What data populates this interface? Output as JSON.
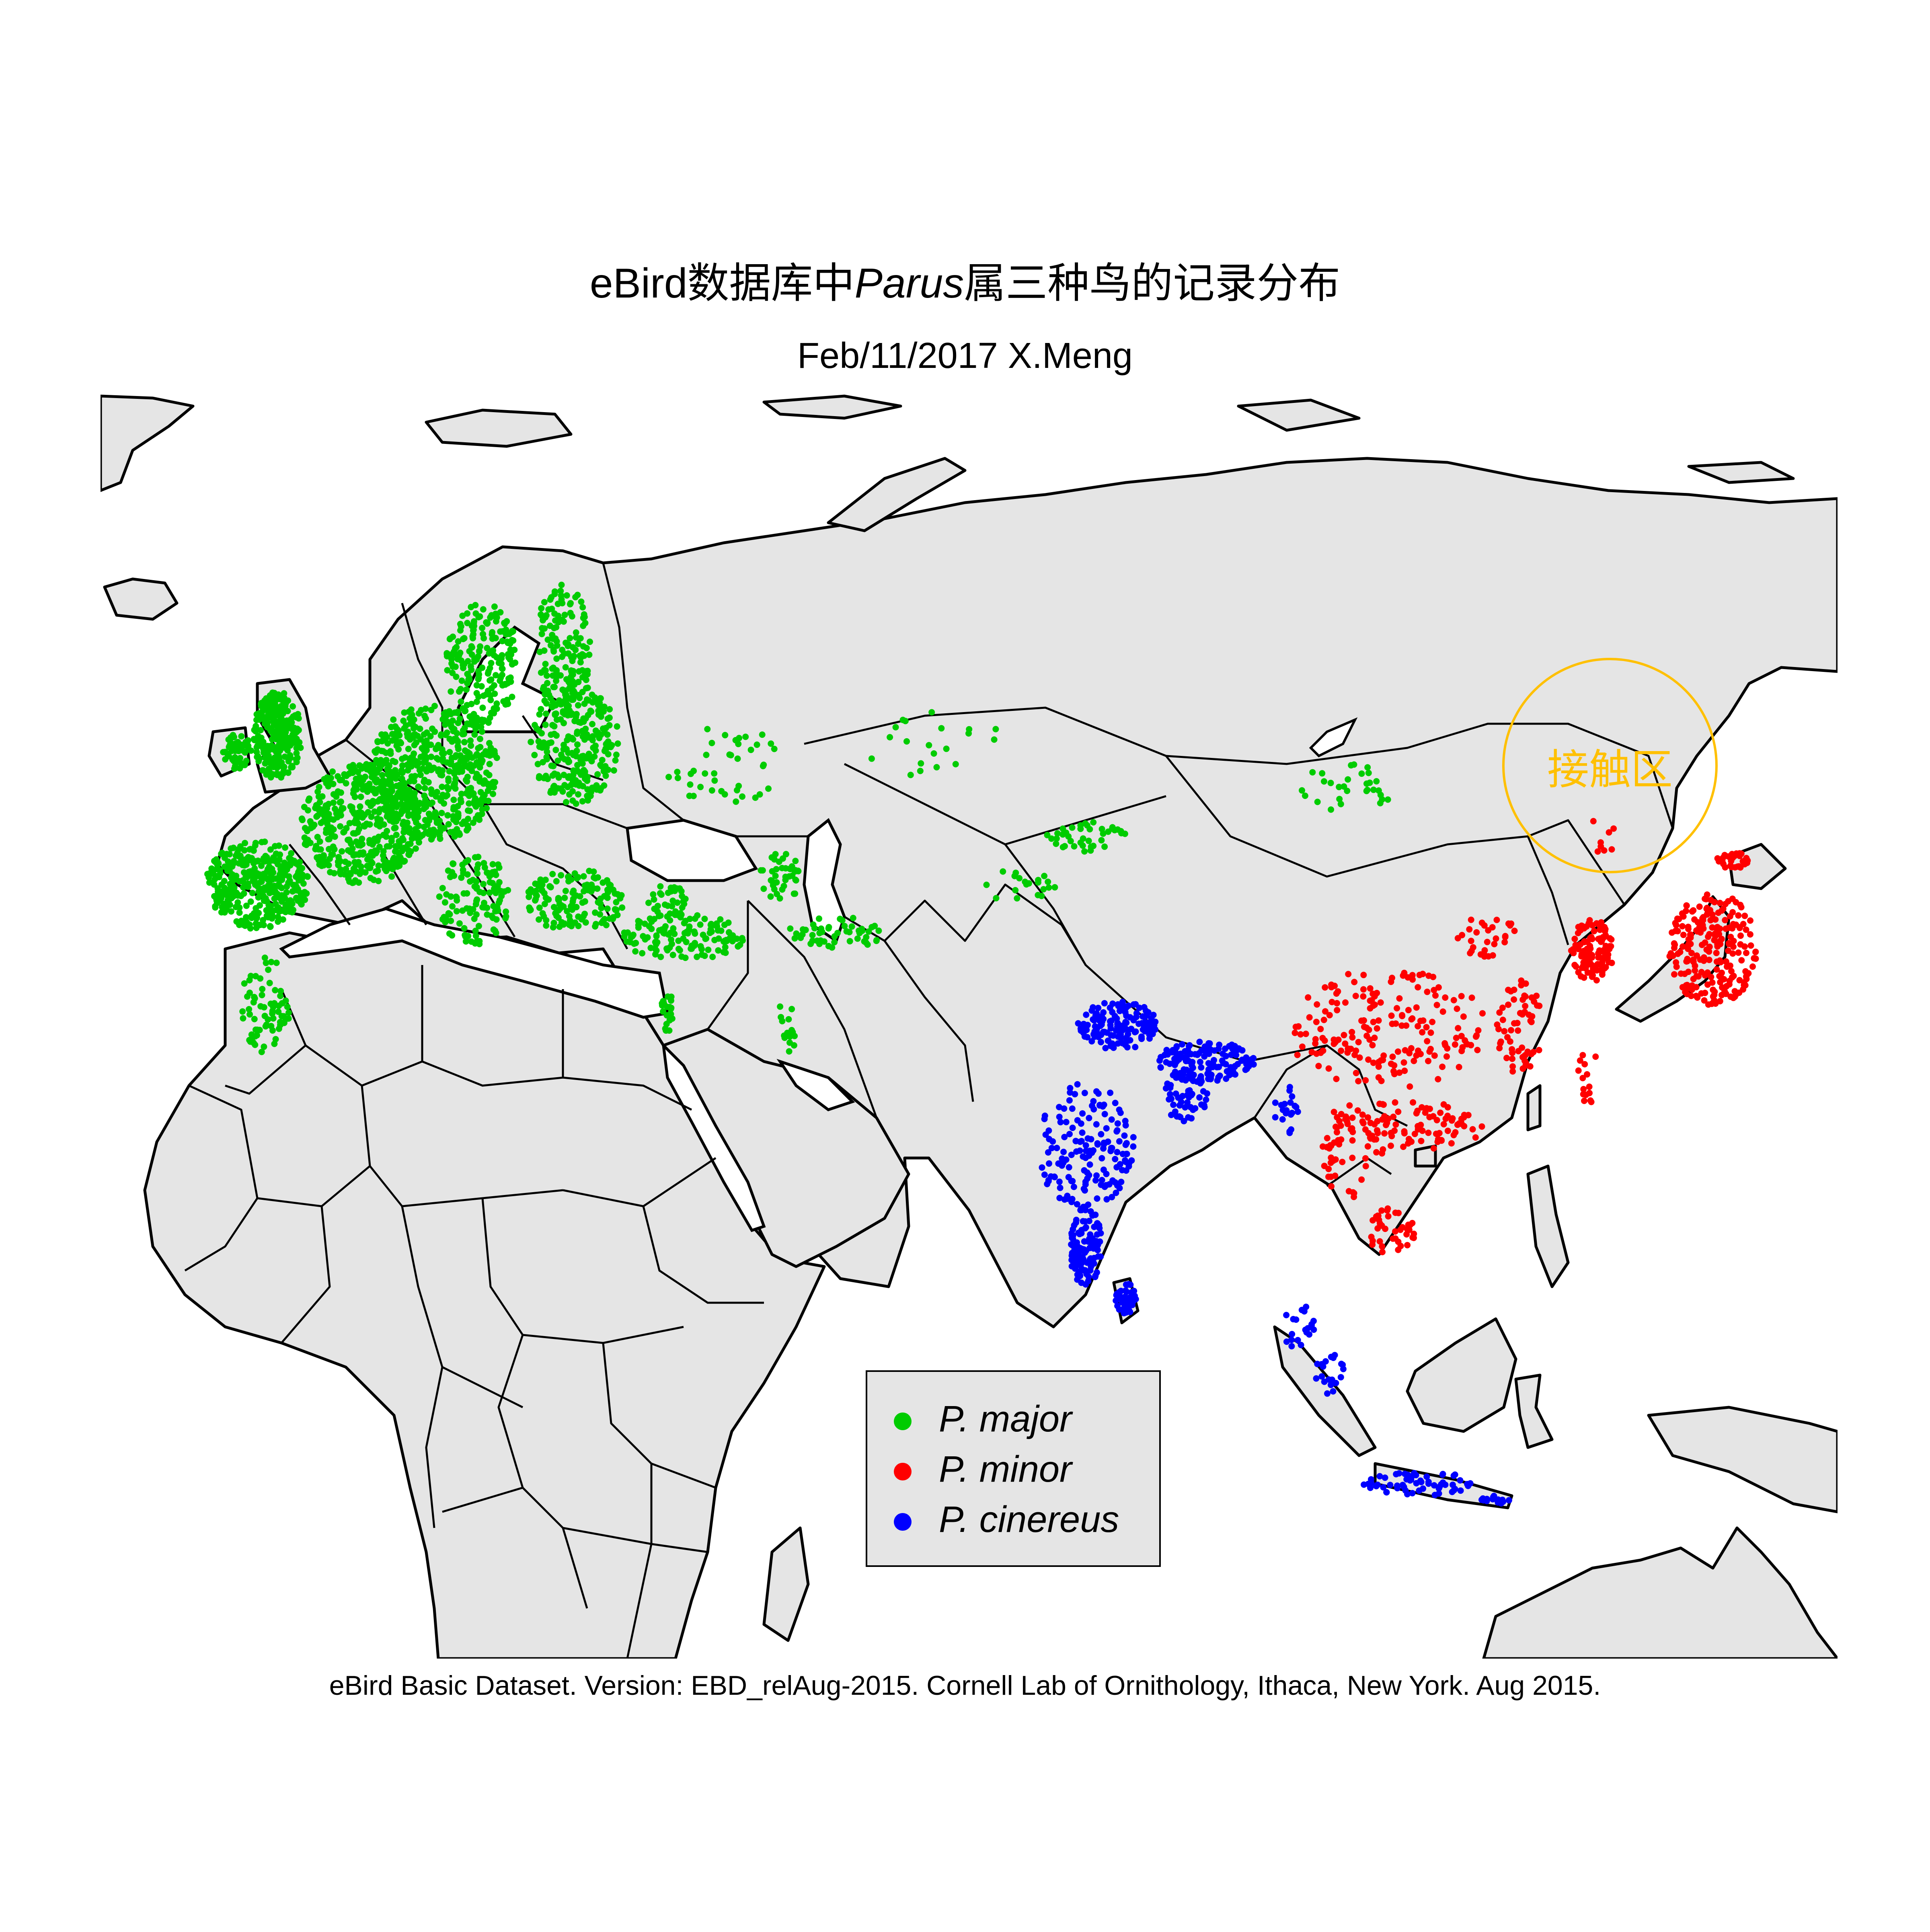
{
  "title": {
    "prefix": "eBird数据库中",
    "genus": "Parus",
    "suffix": "属三种鸟的记录分布"
  },
  "subtitle": "Feb/11/2017 X.Meng",
  "caption": "eBird Basic Dataset. Version: EBD_relAug-2015. Cornell Lab of Ornithology, Ithaca, New York. Aug 2015.",
  "annotation": {
    "label": "接触区",
    "color": "#FFC000",
    "lon": 127,
    "lat": 51
  },
  "colors": {
    "land": "#e5e5e5",
    "border": "#000000",
    "sea": "#ffffff"
  },
  "legend": {
    "position": "bottom-center",
    "entries": [
      {
        "label": "P. major",
        "color": "#00CC00"
      },
      {
        "label": "P. minor",
        "color": "#FF0000"
      },
      {
        "label": "P. cinereus",
        "color": "#0000FF"
      }
    ]
  },
  "map": {
    "projection": "equirectangular",
    "lon_range": [
      -27,
      150
    ],
    "lat_range": [
      -32,
      81
    ],
    "record_clusters": [
      {
        "species": "P. major",
        "color": "#00CC00",
        "regions": [
          "Great Britain",
          "Ireland",
          "Iberia",
          "France",
          "Central Europe",
          "Scandinavia",
          "Finland",
          "Baltic",
          "Eastern Europe",
          "Italy",
          "Balkans",
          "Turkey",
          "Levant",
          "Caucasus",
          "Iran",
          "Kazakhstan",
          "Morocco",
          "Russia"
        ]
      },
      {
        "species": "P. minor",
        "color": "#FF0000",
        "regions": [
          "Japan",
          "Korea",
          "Eastern China",
          "Southern China",
          "Russian Far East",
          "Vietnam",
          "Thailand"
        ]
      },
      {
        "species": "P. cinereus",
        "color": "#0000FF",
        "regions": [
          "India",
          "Nepal",
          "Himalaya",
          "Sri Lanka",
          "Bangladesh",
          "Myanmar",
          "Sumatra",
          "Java",
          "Bali"
        ]
      }
    ]
  }
}
